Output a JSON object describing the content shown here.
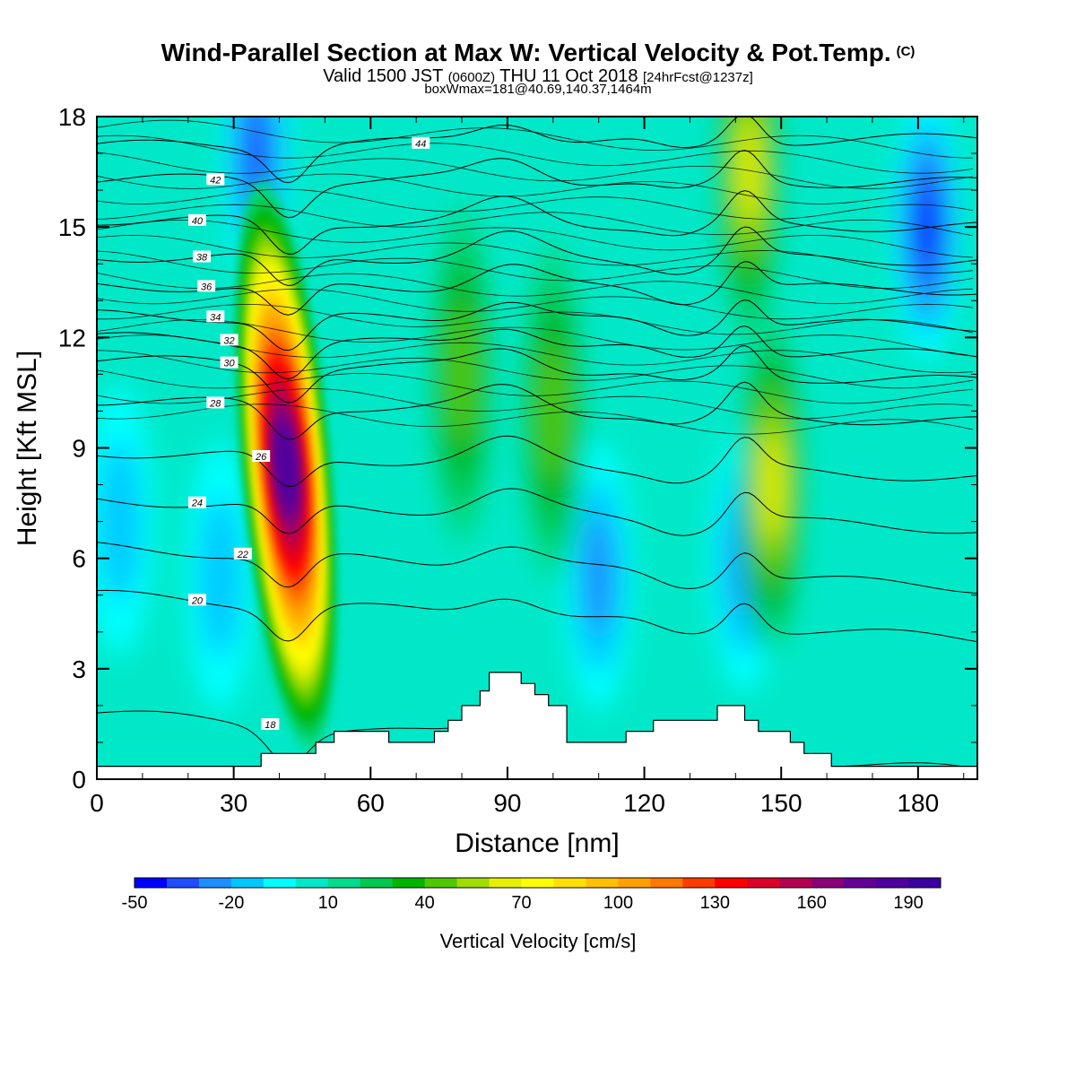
{
  "header": {
    "title": "Wind-Parallel Section at Max W: Vertical Velocity & Pot.Temp.",
    "title_mark": "(C)",
    "valid_prefix": "Valid 1500 JST",
    "valid_z": "(0600Z)",
    "valid_date": "THU 11 Oct 2018",
    "valid_fcst": "[24hrFcst@1237z]",
    "box_info": "boxWmax=181@40.69,140.37,1464m"
  },
  "chart_data": {
    "type": "heatmap",
    "xlabel": "Distance [nm]",
    "ylabel": "Height [Kft MSL]",
    "xlim": [
      0,
      193
    ],
    "ylim": [
      0,
      18
    ],
    "x_ticks": [
      0,
      30,
      60,
      90,
      120,
      150,
      180
    ],
    "y_ticks": [
      0,
      3,
      6,
      9,
      12,
      15,
      18
    ],
    "colorbar": {
      "title": "Vertical Velocity [cm/s]",
      "min": -50,
      "max": 200,
      "step": 10,
      "labels": [
        -50,
        -20,
        10,
        40,
        70,
        100,
        130,
        160,
        190
      ],
      "colors": [
        "#0000ff",
        "#1f4dff",
        "#1f8fff",
        "#00c8ff",
        "#00ffff",
        "#00e8c8",
        "#00dc8c",
        "#00c850",
        "#00b400",
        "#50c800",
        "#a0dc00",
        "#e6f000",
        "#ffff00",
        "#ffe000",
        "#ffc000",
        "#ffa000",
        "#ff7800",
        "#ff3c00",
        "#ff0000",
        "#dc0028",
        "#b40050",
        "#8c0078",
        "#640096",
        "#50009e",
        "#3c00a0"
      ]
    },
    "terrain_kft": [
      [
        0,
        0.35
      ],
      [
        36,
        0.35
      ],
      [
        36,
        0.7
      ],
      [
        48,
        0.7
      ],
      [
        48,
        1.0
      ],
      [
        52,
        1.0
      ],
      [
        52,
        1.3
      ],
      [
        64,
        1.3
      ],
      [
        64,
        1.0
      ],
      [
        74,
        1.0
      ],
      [
        74,
        1.3
      ],
      [
        77,
        1.3
      ],
      [
        77,
        1.6
      ],
      [
        80,
        1.6
      ],
      [
        80,
        2.0
      ],
      [
        84,
        2.0
      ],
      [
        84,
        2.4
      ],
      [
        86,
        2.4
      ],
      [
        86,
        2.9
      ],
      [
        93,
        2.9
      ],
      [
        93,
        2.6
      ],
      [
        96,
        2.6
      ],
      [
        96,
        2.3
      ],
      [
        99,
        2.3
      ],
      [
        99,
        2.0
      ],
      [
        103,
        2.0
      ],
      [
        103,
        1.0
      ],
      [
        116,
        1.0
      ],
      [
        116,
        1.3
      ],
      [
        122,
        1.3
      ],
      [
        122,
        1.6
      ],
      [
        136,
        1.6
      ],
      [
        136,
        2.0
      ],
      [
        142,
        2.0
      ],
      [
        142,
        1.6
      ],
      [
        145,
        1.6
      ],
      [
        145,
        1.3
      ],
      [
        152,
        1.3
      ],
      [
        152,
        1.0
      ],
      [
        155,
        1.0
      ],
      [
        155,
        0.7
      ],
      [
        161,
        0.7
      ],
      [
        161,
        0.35
      ],
      [
        193,
        0.35
      ]
    ],
    "updrafts": [
      {
        "x": 41.5,
        "y": 8.5,
        "w_cm_s": 181
      },
      {
        "x": 143,
        "y": 16.5,
        "w_cm_s": 60
      },
      {
        "x": 148,
        "y": 8,
        "w_cm_s": 55
      },
      {
        "x": 80,
        "y": 11,
        "w_cm_s": 40
      },
      {
        "x": 100,
        "y": 10,
        "w_cm_s": 35
      }
    ],
    "downdrafts": [
      {
        "x": 35,
        "y": 17,
        "w_cm_s": -40
      },
      {
        "x": 182,
        "y": 15,
        "w_cm_s": -45
      },
      {
        "x": 110,
        "y": 5.5,
        "w_cm_s": -30
      },
      {
        "x": 142,
        "y": 6,
        "w_cm_s": -30
      },
      {
        "x": 5,
        "y": 7,
        "w_cm_s": -20
      },
      {
        "x": 27,
        "y": 5.5,
        "w_cm_s": -20
      }
    ],
    "isentropes": [
      {
        "label": "18",
        "label_x": 38,
        "y_left": 1.8,
        "y_right": 0.2
      },
      {
        "label": "20",
        "label_x": 22,
        "y_left": 5.0,
        "y_right": 3.8
      },
      {
        "label": "22",
        "label_x": 32,
        "y_left": 6.3,
        "y_right": 5.2
      },
      {
        "label": "24",
        "label_x": 22,
        "y_left": 7.6,
        "y_right": 6.8
      },
      {
        "label": "26",
        "label_x": 36,
        "y_left": 8.9,
        "y_right": 8.2
      },
      {
        "label": "28",
        "label_x": 26,
        "y_left": 10.3,
        "y_right": 9.7
      },
      {
        "label": "30",
        "label_x": 29,
        "y_left": 11.4,
        "y_right": 10.8
      },
      {
        "label": "32",
        "label_x": 29,
        "y_left": 12.0,
        "y_right": 11.5
      },
      {
        "label": "34",
        "label_x": 26,
        "y_left": 12.6,
        "y_right": 12.3
      },
      {
        "label": "36",
        "label_x": 24,
        "y_left": 13.4,
        "y_right": 13.3
      },
      {
        "label": "38",
        "label_x": 23,
        "y_left": 14.2,
        "y_right": 14.1
      },
      {
        "label": "40",
        "label_x": 22,
        "y_left": 15.2,
        "y_right": 15.0
      },
      {
        "label": "42",
        "label_x": 26,
        "y_left": 16.3,
        "y_right": 16.2
      },
      {
        "label": "44",
        "label_x": 71,
        "y_left": 17.2,
        "y_right": 17.4
      }
    ]
  }
}
